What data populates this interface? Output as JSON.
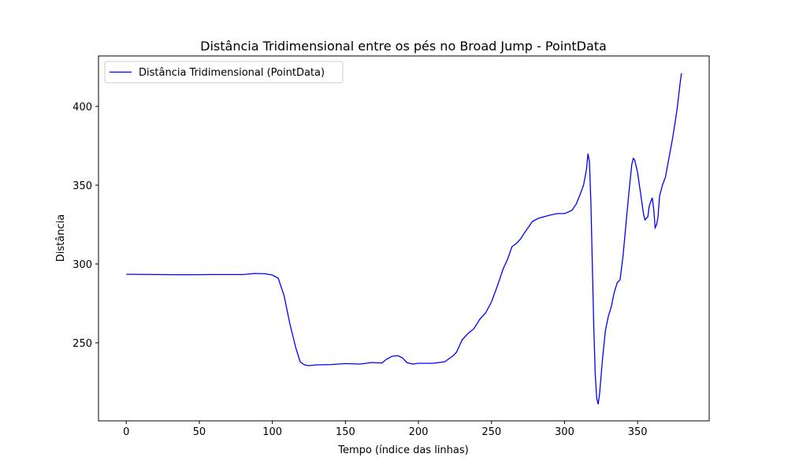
{
  "chart_data": {
    "type": "line",
    "title": "Distância Tridimensional entre os pés no Broad Jump - PointData",
    "x_label": "Tempo (índice das linhas)",
    "y_label": "Distância",
    "legend": "upper left",
    "xlim": [
      -19,
      399
    ],
    "xticks": [
      0,
      50,
      100,
      150,
      200,
      250,
      300,
      350
    ],
    "ylim": [
      200.5,
      432
    ],
    "yticks": [
      250,
      300,
      350,
      400
    ],
    "x": [
      0,
      20,
      40,
      60,
      80,
      88,
      95,
      100,
      104,
      108,
      112,
      116,
      119,
      122,
      125,
      130,
      140,
      150,
      160,
      168,
      175,
      178,
      182,
      186,
      189,
      192,
      196,
      200,
      210,
      218,
      224,
      226,
      230,
      234,
      238,
      242,
      246,
      250,
      254,
      258,
      261,
      264,
      267,
      270,
      272,
      275,
      278,
      282,
      286,
      290,
      295,
      300,
      305,
      308,
      311,
      313,
      315,
      316,
      317,
      318,
      319,
      320,
      321,
      322,
      323,
      324,
      326,
      328,
      330,
      332,
      334,
      336,
      338,
      340,
      342,
      344,
      346,
      347,
      348,
      350,
      352,
      354,
      355,
      357,
      358,
      360,
      361,
      362,
      363,
      364,
      365,
      367,
      369,
      371,
      374,
      377,
      379,
      380
    ],
    "series": [
      {
        "name": "Distância Tridimensional (PointData)",
        "color": "#0000ff",
        "values": [
          293.5,
          293.3,
          293.2,
          293.3,
          293.3,
          294,
          293.8,
          293,
          291,
          280,
          262,
          247,
          238,
          236,
          235.5,
          236,
          236.2,
          236.8,
          236.5,
          237.5,
          237.2,
          239.5,
          241.5,
          241.8,
          240.5,
          237.5,
          236.5,
          237,
          237,
          238,
          242,
          244,
          252,
          256,
          259,
          265,
          269,
          276,
          286,
          297,
          303,
          311,
          313,
          316,
          319,
          323,
          327,
          329,
          330,
          331,
          332,
          332,
          334,
          338,
          345,
          350,
          360,
          370,
          365,
          340,
          300,
          260,
          230,
          215,
          211,
          218,
          240,
          258,
          267,
          273,
          282,
          288,
          290,
          305,
          325,
          345,
          363,
          367,
          366,
          358,
          345,
          332,
          328,
          330,
          337,
          342,
          335,
          323,
          325,
          330,
          343,
          350,
          355,
          365,
          380,
          398,
          414,
          421
        ]
      }
    ]
  }
}
